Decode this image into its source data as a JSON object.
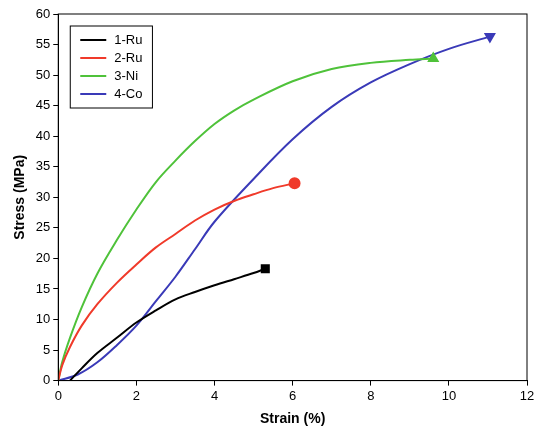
{
  "chart_data": {
    "type": "line",
    "x_label": "Strain (%)",
    "y_label": "Stress (MPa)",
    "xlim": [
      0,
      12
    ],
    "xticks": [
      0,
      2,
      4,
      6,
      8,
      10,
      12
    ],
    "ylim": [
      0,
      60
    ],
    "yticks": [
      0,
      5,
      10,
      15,
      20,
      25,
      30,
      35,
      40,
      45,
      50,
      55,
      60
    ],
    "grid": false,
    "legend": "top-left",
    "series": [
      {
        "name": "1-Ru",
        "color": "#000000",
        "marker": "square",
        "x": [
          0.3,
          0.6,
          1,
          1.5,
          2,
          2.5,
          3,
          3.5,
          4,
          4.5,
          5,
          5.3
        ],
        "values": [
          0,
          2,
          4.5,
          7,
          9.5,
          11.5,
          13.3,
          14.5,
          15.6,
          16.6,
          17.6,
          18.3
        ]
      },
      {
        "name": "2-Ru",
        "color": "#f03a2a",
        "marker": "circle",
        "x": [
          0,
          0.1,
          0.3,
          0.6,
          1,
          1.5,
          2,
          2.5,
          3,
          3.5,
          4,
          4.5,
          5,
          5.5,
          6.05
        ],
        "values": [
          0,
          2.5,
          5.5,
          9,
          12.5,
          16,
          19,
          21.8,
          24,
          26.2,
          28,
          29.4,
          30.5,
          31.5,
          32.3
        ]
      },
      {
        "name": "3-Ni",
        "color": "#4fc23a",
        "marker": "triangle",
        "x": [
          0,
          0.1,
          0.3,
          0.6,
          1,
          1.5,
          2,
          2.5,
          3,
          3.5,
          4,
          4.5,
          5,
          6,
          7,
          8,
          9,
          9.6
        ],
        "values": [
          0,
          3,
          7,
          12,
          17.5,
          23,
          28,
          32.5,
          36,
          39.2,
          42,
          44.2,
          46,
          49,
          51,
          52,
          52.5,
          52.7
        ]
      },
      {
        "name": "4-Co",
        "color": "#3a3ab8",
        "marker": "triangle_down",
        "x": [
          0,
          0.5,
          1,
          1.5,
          2,
          2.5,
          3,
          3.5,
          4,
          5,
          6,
          7,
          8,
          9,
          10,
          11.05
        ],
        "values": [
          0,
          1,
          3,
          5.8,
          9,
          13,
          17,
          21.5,
          26,
          33,
          39.5,
          44.8,
          48.8,
          51.8,
          54.3,
          56.3
        ]
      }
    ]
  }
}
